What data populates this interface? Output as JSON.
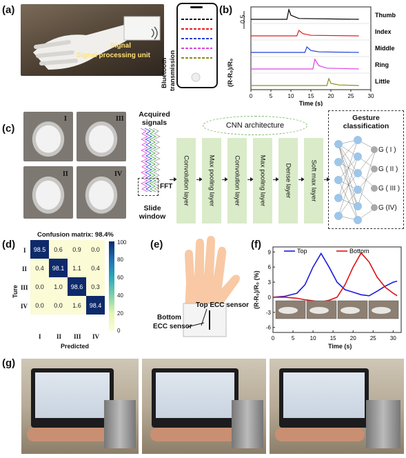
{
  "panels": {
    "a": "(a)",
    "b": "(b)",
    "c": "(c)",
    "d": "(d)",
    "e": "(e)",
    "f": "(f)",
    "g": "(g)"
  },
  "panel_a": {
    "unit_label": "Signal processing unit",
    "bt_label_1": "Bluetooth",
    "bt_label_2": "transmission"
  },
  "panel_b": {
    "ylabel": "(R-R₀)/R₀",
    "scale": "0.5",
    "xlabel": "Time (s)",
    "xticks": [
      "0",
      "5",
      "10",
      "15",
      "20",
      "25",
      "30"
    ],
    "channels": [
      "Thumb",
      "Index",
      "Middle",
      "Ring",
      "Little"
    ],
    "colors": [
      "#000000",
      "#e41a1c",
      "#1f3fd8",
      "#e040e0",
      "#8a8a1a"
    ]
  },
  "panel_c": {
    "roman": [
      "I",
      "III",
      "II",
      "IV"
    ],
    "acquired": "Acquired signals",
    "fft": "FFT",
    "slide": "Slide window",
    "cnn_title": "CNN architecture",
    "layers": [
      "Convolution layer",
      "Max pooling layer",
      "Convolution layer",
      "Max pooling layer",
      "Dense layer",
      "Soft max layer"
    ],
    "gesture_title": "Gesture classification",
    "outputs": [
      "G ( I )",
      "G ( II )",
      "G ( III )",
      "G (IV)"
    ]
  },
  "panel_d": {
    "title": "Confusion matrix: 98.4%",
    "ylabel": "Ture",
    "xlabel": "Predicted",
    "rows": [
      "I",
      "II",
      "III",
      "IV"
    ],
    "cols": [
      "I",
      "II",
      "III",
      "IV"
    ],
    "matrix": [
      [
        "98.5",
        "0.6",
        "0.9",
        "0.0"
      ],
      [
        "0.4",
        "98.1",
        "1.1",
        "0.4"
      ],
      [
        "0.0",
        "1.0",
        "98.6",
        "0.3"
      ],
      [
        "0.0",
        "0.0",
        "1.6",
        "98.4"
      ]
    ],
    "colorbar_ticks": [
      "100",
      "80",
      "60",
      "40",
      "20",
      "0"
    ]
  },
  "panel_e": {
    "top_label": "Top ECC sensor",
    "bottom_label_1": "Bottom",
    "bottom_label_2": "ECC sensor"
  },
  "panel_f": {
    "ylabel": "(R-R₀)/R₀ (%)",
    "xlabel": "Time (s)",
    "yticks": [
      "9",
      "6",
      "3",
      "0",
      "-3",
      "-6"
    ],
    "xticks": [
      "0",
      "5",
      "10",
      "15",
      "20",
      "25",
      "30"
    ],
    "legend_top": "Top",
    "legend_bottom": "Bottom",
    "top_color": "#1a1adf",
    "bottom_color": "#e01010"
  },
  "chart_data": [
    {
      "type": "line",
      "xlabel": "Time (s)",
      "ylabel": "(R-R₀)/R₀",
      "xlim": [
        0,
        30
      ],
      "series": [
        {
          "name": "Thumb",
          "x": [
            0,
            9,
            9.5,
            10,
            12,
            27
          ],
          "y": [
            0,
            0,
            0.35,
            0.15,
            0.03,
            0
          ]
        },
        {
          "name": "Index",
          "x": [
            0,
            11.5,
            12,
            13,
            15,
            27
          ],
          "y": [
            0,
            0,
            0.2,
            0.08,
            0.02,
            0
          ]
        },
        {
          "name": "Middle",
          "x": [
            0,
            13.5,
            14,
            15,
            17,
            27
          ],
          "y": [
            0,
            0,
            0.2,
            0.07,
            0.02,
            0
          ]
        },
        {
          "name": "Ring",
          "x": [
            0,
            15.5,
            16,
            17,
            19,
            27
          ],
          "y": [
            0,
            0,
            0.35,
            0.12,
            0.03,
            0
          ]
        },
        {
          "name": "Little",
          "x": [
            0,
            19,
            19.5,
            20,
            22,
            27
          ],
          "y": [
            0,
            0,
            0.25,
            0.08,
            0.02,
            0
          ]
        }
      ]
    },
    {
      "type": "line",
      "xlabel": "Time (s)",
      "ylabel": "(R-R₀)/R₀ (%)",
      "xlim": [
        0,
        32
      ],
      "ylim": [
        -7,
        10
      ],
      "series": [
        {
          "name": "Top",
          "x": [
            0,
            3,
            6,
            8,
            10,
            12,
            14,
            16,
            18,
            20,
            22,
            24,
            26,
            28,
            30,
            31
          ],
          "y": [
            0,
            0.2,
            0.8,
            2.5,
            6,
            8.7,
            6,
            3,
            1.5,
            1,
            0.5,
            0.3,
            1.2,
            2.2,
            3,
            3.2
          ]
        },
        {
          "name": "Bottom",
          "x": [
            0,
            3,
            6,
            8,
            10,
            12,
            14,
            16,
            18,
            20,
            22,
            24,
            26,
            28,
            30,
            31
          ],
          "y": [
            0,
            0,
            -0.2,
            -0.5,
            -0.7,
            -0.9,
            -0.6,
            0,
            2.5,
            6,
            8.8,
            7,
            4,
            2,
            0.8,
            0.3
          ]
        }
      ]
    },
    {
      "type": "heatmap",
      "title": "Confusion matrix: 98.4%",
      "categories": [
        "I",
        "II",
        "III",
        "IV"
      ],
      "values": [
        [
          98.5,
          0.6,
          0.9,
          0.0
        ],
        [
          0.4,
          98.1,
          1.1,
          0.4
        ],
        [
          0.0,
          1.0,
          98.6,
          0.3
        ],
        [
          0.0,
          0.0,
          1.6,
          98.4
        ]
      ],
      "colorbar": [
        0,
        100
      ]
    }
  ]
}
